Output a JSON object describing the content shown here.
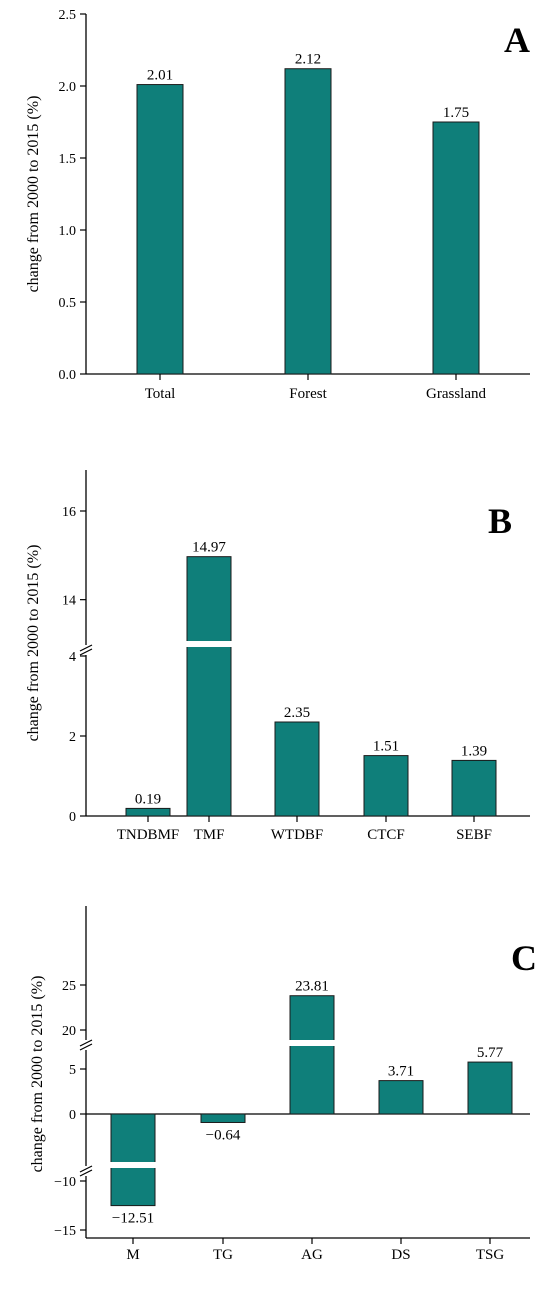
{
  "bar_color": "#0f7f7a",
  "chart_data": [
    {
      "type": "bar",
      "panel_label": "A",
      "ylabel": "change from 2000 to 2015 (%)",
      "categories": [
        "Total",
        "Forest",
        "Grassland"
      ],
      "values": [
        2.01,
        2.12,
        1.75
      ],
      "data_labels": [
        "2.01",
        "2.12",
        "1.75"
      ],
      "ylim": [
        0,
        2.5
      ],
      "yticks": [
        0.0,
        0.5,
        1.0,
        1.5,
        2.0,
        2.5
      ],
      "ytick_labels": [
        "0.0",
        "0.5",
        "1.0",
        "1.5",
        "2.0",
        "2.5"
      ],
      "grid": false
    },
    {
      "type": "bar",
      "panel_label": "B",
      "ylabel": "change from 2000 to 2015 (%)",
      "categories": [
        "TNDBMF",
        "TMF",
        "WTDBF",
        "CTCF",
        "SEBF"
      ],
      "values": [
        0.19,
        14.97,
        2.35,
        1.51,
        1.39
      ],
      "data_labels": [
        "0.19",
        "14.97",
        "2.35",
        "1.51",
        "1.39"
      ],
      "ylim": [
        0,
        17
      ],
      "axis_break": [
        4.3,
        13
      ],
      "yticks": [
        0,
        2,
        4,
        14,
        16
      ],
      "ytick_labels": [
        "0",
        "2",
        "4",
        "14",
        "16"
      ],
      "grid": false
    },
    {
      "type": "bar",
      "panel_label": "C",
      "ylabel": "change from 2000 to 2015 (%)",
      "categories": [
        "M",
        "TG",
        "AG",
        "DS",
        "TSG"
      ],
      "values": [
        -12.51,
        -0.64,
        23.81,
        3.71,
        5.77
      ],
      "data_labels": [
        "−12.51",
        "−0.64",
        "23.81",
        "3.71",
        "5.77"
      ],
      "ylim": [
        -17.5,
        27
      ],
      "axis_breaks": [
        [
          8,
          18.5
        ],
        [
          -8.5,
          -4
        ]
      ],
      "yticks": [
        -15,
        -10,
        0,
        5,
        20,
        25
      ],
      "ytick_labels": [
        "−15",
        "−10",
        "0",
        "5",
        "20",
        "25"
      ],
      "grid": false
    }
  ]
}
